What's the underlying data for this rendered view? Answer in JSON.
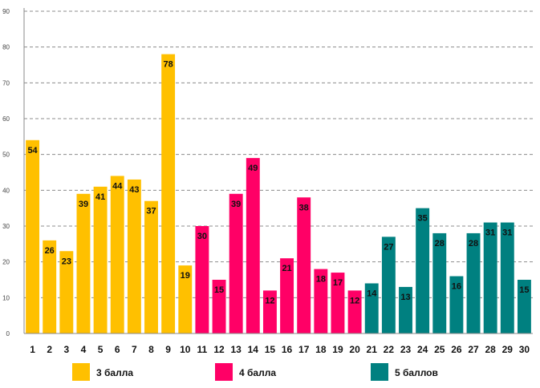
{
  "chart_data": {
    "type": "bar",
    "title": "",
    "xlabel": "",
    "ylabel": "",
    "ylim": [
      0,
      90
    ],
    "yticks": [
      0,
      10,
      20,
      30,
      40,
      50,
      60,
      70,
      80,
      90
    ],
    "grid": true,
    "legend_position": "bottom",
    "categories": [
      "1",
      "2",
      "3",
      "4",
      "5",
      "6",
      "7",
      "8",
      "9",
      "10",
      "11",
      "12",
      "13",
      "14",
      "15",
      "16",
      "17",
      "18",
      "19",
      "20",
      "21",
      "22",
      "23",
      "24",
      "25",
      "26",
      "27",
      "28",
      "29",
      "30"
    ],
    "series": [
      {
        "name": "3 балла",
        "color": "#FFC000",
        "values": [
          54,
          26,
          23,
          39,
          41,
          44,
          43,
          37,
          78,
          19,
          null,
          null,
          null,
          null,
          null,
          null,
          null,
          null,
          null,
          null,
          null,
          null,
          null,
          null,
          null,
          null,
          null,
          null,
          null,
          null
        ]
      },
      {
        "name": "4 балла",
        "color": "#FF0066",
        "values": [
          null,
          null,
          null,
          null,
          null,
          null,
          null,
          null,
          null,
          null,
          30,
          15,
          39,
          49,
          12,
          21,
          38,
          18,
          17,
          12,
          null,
          null,
          null,
          null,
          null,
          null,
          null,
          null,
          null,
          null
        ]
      },
      {
        "name": "5 баллов",
        "color": "#008080",
        "values": [
          null,
          null,
          null,
          null,
          null,
          null,
          null,
          null,
          null,
          null,
          null,
          null,
          null,
          null,
          null,
          null,
          null,
          null,
          null,
          null,
          14,
          27,
          13,
          35,
          28,
          16,
          28,
          31,
          31,
          15
        ]
      }
    ]
  }
}
